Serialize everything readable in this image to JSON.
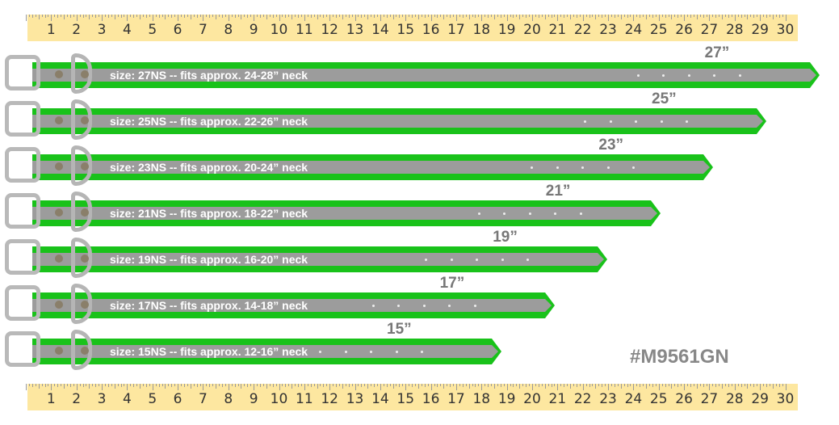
{
  "ruler": {
    "unit": "inch",
    "numbers": [
      1,
      2,
      3,
      4,
      5,
      6,
      7,
      8,
      9,
      10,
      11,
      12,
      13,
      14,
      15,
      16,
      17,
      18,
      19,
      20,
      21,
      22,
      23,
      24,
      25,
      26,
      27,
      28,
      29,
      30
    ]
  },
  "collars": [
    {
      "size": "size: 27NS -- fits approx. 24-28” neck",
      "length": "27”",
      "length_in": 27,
      "holes": 5
    },
    {
      "size": "size: 25NS -- fits approx. 22-26” neck",
      "length": "25”",
      "length_in": 25,
      "holes": 5
    },
    {
      "size": "size: 23NS -- fits approx. 20-24” neck",
      "length": "23”",
      "length_in": 23,
      "holes": 5
    },
    {
      "size": "size: 21NS -- fits approx. 18-22” neck",
      "length": "21”",
      "length_in": 21,
      "holes": 5
    },
    {
      "size": "size: 19NS -- fits approx. 16-20” neck",
      "length": "19”",
      "length_in": 19,
      "holes": 5
    },
    {
      "size": "size: 17NS -- fits approx. 14-18” neck",
      "length": "17”",
      "length_in": 17,
      "holes": 5
    },
    {
      "size": "size: 15NS -- fits approx. 12-16” neck",
      "length": "15”",
      "length_in": 15,
      "holes": 5
    }
  ],
  "sku": "#M9561GN",
  "colors": {
    "strap": "#19c21a",
    "reflective": "#9c9c9c",
    "ruler": "#fde7a0"
  }
}
